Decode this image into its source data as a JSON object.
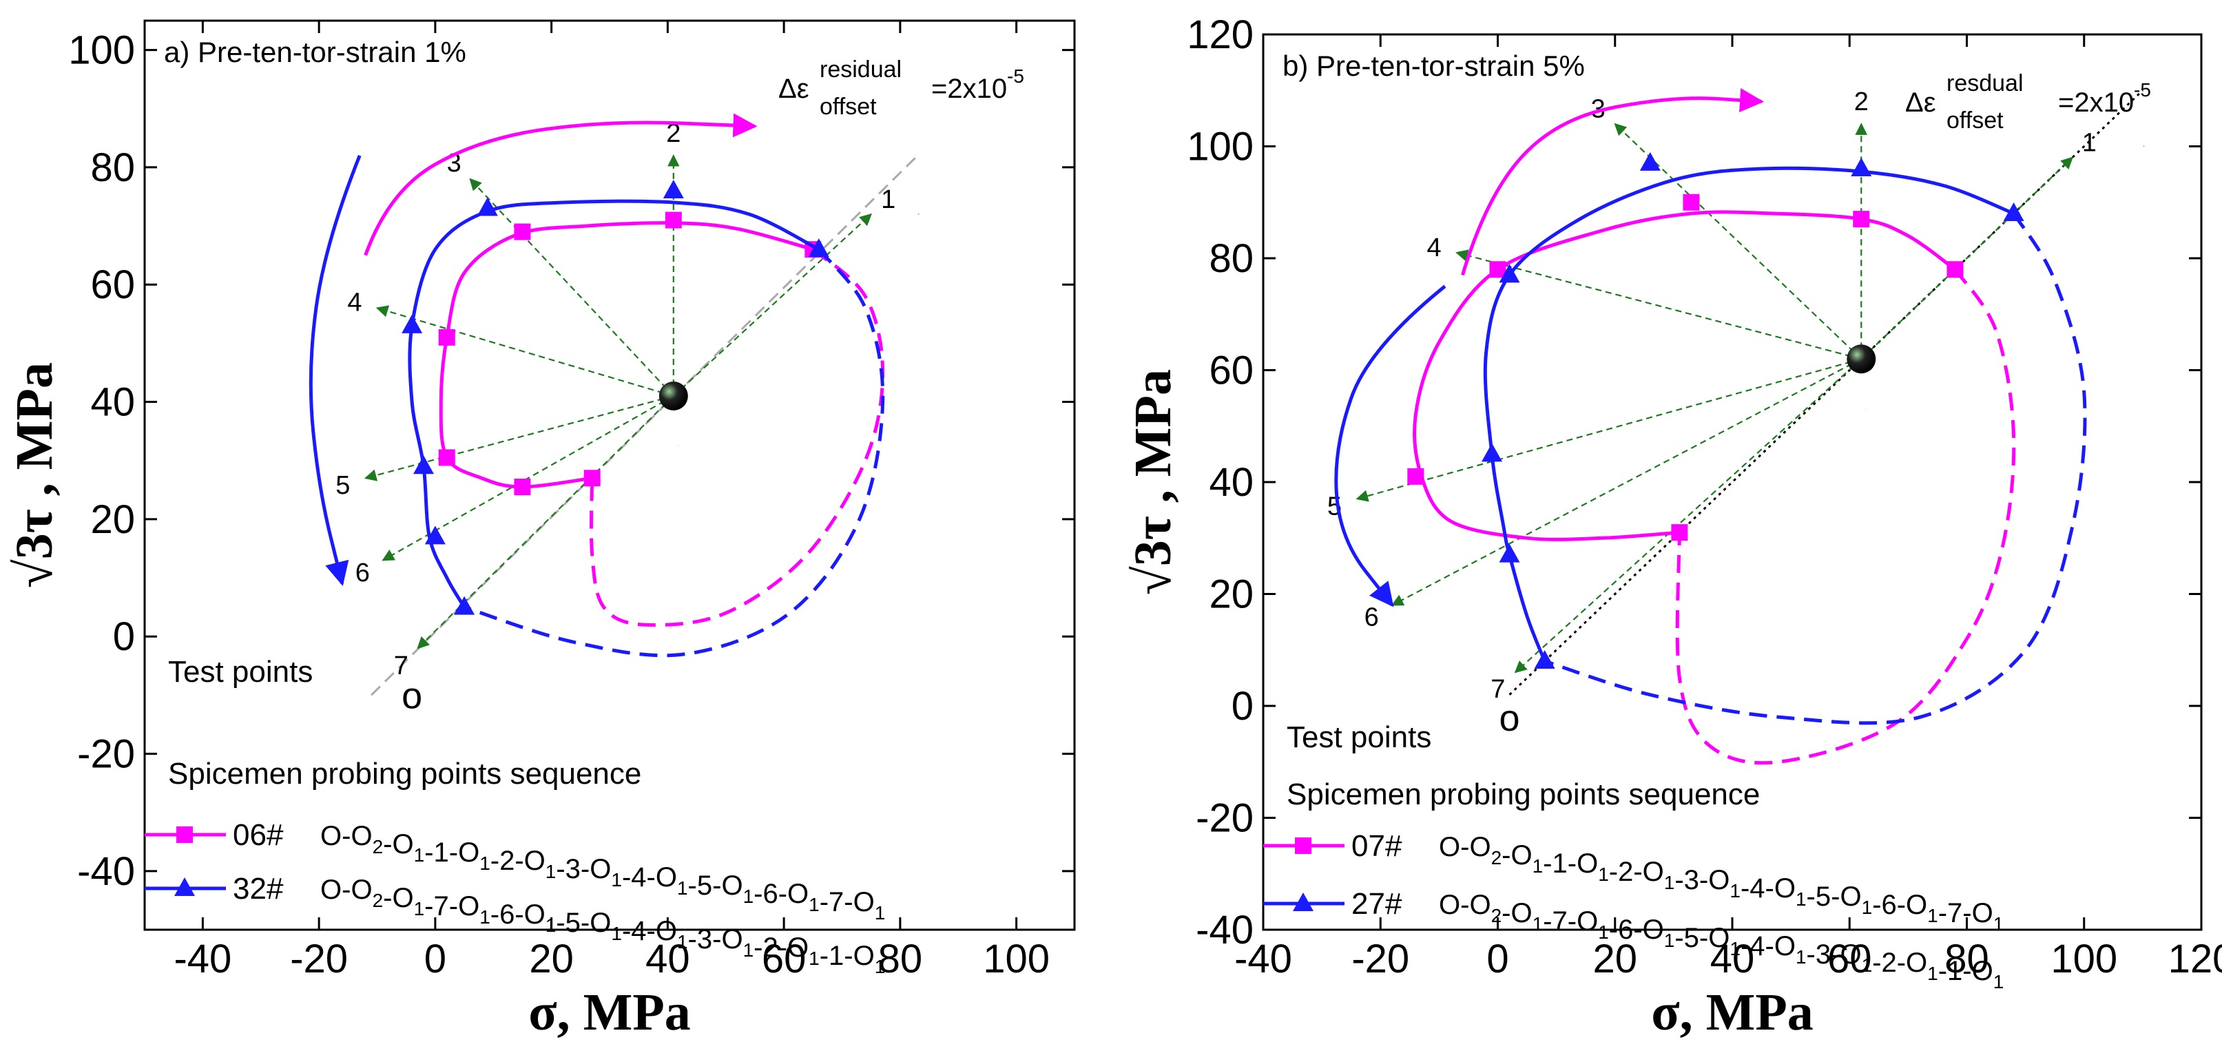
{
  "colors": {
    "magenta": "#ff00ff",
    "blue": "#1a1aff",
    "green": "#1e7a1e",
    "axis": "#000000",
    "gray": "#aaaaaa"
  },
  "chart_data": [
    {
      "type": "scatter",
      "panel_label": "a)",
      "title": "Pre-ten-tor-strain 1%",
      "offset_label": {
        "prefix": "Δε",
        "sup": "residual",
        "sub": "offset",
        "value": "=2x10",
        "exp": "-5"
      },
      "xlabel": "σ,  MPa",
      "ylabel_prefix": "√3τ",
      "ylabel_suffix": " , MPa",
      "xlim": [
        -50,
        110
      ],
      "ylim": [
        -50,
        105
      ],
      "xticks": [
        -40,
        -20,
        0,
        20,
        40,
        60,
        80,
        100
      ],
      "yticks": [
        -40,
        -20,
        0,
        20,
        40,
        60,
        80,
        100
      ],
      "center": {
        "x": 41,
        "y": 41,
        "label": "o",
        "sub": "1"
      },
      "origin": {
        "x": -4,
        "y": -8,
        "label": "o"
      },
      "o2": {
        "x": 83,
        "y": 72,
        "label": "o",
        "sub": "2"
      },
      "test_points_label": "Test points",
      "legend_header": "Spicemen    probing points sequence",
      "probe_arrows": [
        {
          "label": "1",
          "x": 75,
          "y": 72
        },
        {
          "label": "2",
          "x": 41,
          "y": 82
        },
        {
          "label": "3",
          "x": 6,
          "y": 78
        },
        {
          "label": "4",
          "x": -10,
          "y": 56
        },
        {
          "label": "5",
          "x": -12,
          "y": 27
        },
        {
          "label": "6",
          "x": -9,
          "y": 13
        },
        {
          "label": "7",
          "x": -3,
          "y": -2
        }
      ],
      "series": [
        {
          "name": "06#",
          "marker": "square",
          "color": "#ff00ff",
          "sequence": "O-O2-O1-1-O1-2-O1-3-O1-4-O1-5-O1-6-O1-7-O1",
          "points": [
            [
              65,
              66
            ],
            [
              41,
              71
            ],
            [
              15,
              69
            ],
            [
              2,
              51
            ],
            [
              2,
              30.5
            ],
            [
              15,
              25.5
            ],
            [
              27,
              27
            ]
          ],
          "curve": [
            [
              65,
              66
            ],
            [
              52,
              69.5
            ],
            [
              41,
              70.5
            ],
            [
              26,
              70
            ],
            [
              14,
              68.5
            ],
            [
              5,
              62
            ],
            [
              2,
              51
            ],
            [
              1,
              40
            ],
            [
              2,
              30.5
            ],
            [
              8,
              27
            ],
            [
              15,
              25.5
            ],
            [
              27,
              27
            ]
          ],
          "dashed": [
            [
              65,
              66
            ],
            [
              74,
              58
            ],
            [
              77,
              45
            ],
            [
              74,
              30
            ],
            [
              64,
              14
            ],
            [
              50,
              4
            ],
            [
              36,
              2
            ],
            [
              29,
              5
            ],
            [
              27,
              14
            ],
            [
              27,
              27
            ]
          ]
        },
        {
          "name": "32#",
          "marker": "triangle",
          "color": "#1a1aff",
          "sequence": "O-O2-O1-7-O1-6-O1-5-O1-4-O1-3-O1-2-O1-1-O1",
          "points": [
            [
              66,
              66
            ],
            [
              41,
              76
            ],
            [
              9,
              73
            ],
            [
              -4,
              53
            ],
            [
              -2,
              29
            ],
            [
              0,
              17
            ],
            [
              5,
              5
            ]
          ],
          "curve": [
            [
              66,
              66
            ],
            [
              54,
              72
            ],
            [
              41,
              74
            ],
            [
              22,
              74
            ],
            [
              9,
              72.5
            ],
            [
              0,
              66
            ],
            [
              -4,
              53
            ],
            [
              -4,
              40
            ],
            [
              -2,
              29
            ],
            [
              -1,
              17
            ],
            [
              2,
              10
            ],
            [
              5,
              5
            ]
          ],
          "dashed": [
            [
              66,
              66
            ],
            [
              74,
              56
            ],
            [
              77,
              40
            ],
            [
              73,
              20
            ],
            [
              61,
              4
            ],
            [
              43,
              -3
            ],
            [
              24,
              -1
            ],
            [
              5,
              5
            ]
          ]
        }
      ],
      "direction_arrows": [
        {
          "color": "#ff00ff",
          "path": [
            [
              -12,
              65
            ],
            [
              -8,
              76
            ],
            [
              8,
              85
            ],
            [
              30,
              88
            ],
            [
              55,
              87
            ]
          ]
        },
        {
          "color": "#1a1aff",
          "path": [
            [
              -13,
              82
            ],
            [
              -19,
              67
            ],
            [
              -22,
              45
            ],
            [
              -20,
              25
            ],
            [
              -16,
              9
            ]
          ]
        }
      ],
      "gray_line": [
        [
          -11,
          -10
        ],
        [
          83,
          82
        ]
      ]
    },
    {
      "type": "scatter",
      "panel_label": "b)",
      "title": "Pre-ten-tor-strain 5%",
      "offset_label": {
        "prefix": "Δε",
        "sup": "resdual",
        "sub": "offset",
        "value": "=2x10",
        "exp": "-5"
      },
      "xlabel": "σ,  MPa",
      "ylabel_prefix": "√3τ",
      "ylabel_suffix": " , MPa",
      "xlim": [
        -40,
        120
      ],
      "ylim": [
        -40,
        120
      ],
      "xticks": [
        -40,
        -20,
        0,
        20,
        40,
        60,
        80,
        100,
        120
      ],
      "yticks": [
        -40,
        -20,
        0,
        20,
        40,
        60,
        80,
        100,
        120
      ],
      "center": {
        "x": 62,
        "y": 62,
        "label": "o",
        "sub": "1"
      },
      "origin": {
        "x": 2,
        "y": 0,
        "label": "o"
      },
      "o2": {
        "x": 110,
        "y": 100,
        "label": "o",
        "sub": "2"
      },
      "test_points_label": "Test points",
      "legend_header": "Spicemen  probing points sequence",
      "probe_arrows": [
        {
          "label": "1",
          "x": 98,
          "y": 98
        },
        {
          "label": "2",
          "x": 62,
          "y": 104
        },
        {
          "label": "3",
          "x": 20,
          "y": 104
        },
        {
          "label": "4",
          "x": -7,
          "y": 81
        },
        {
          "label": "5",
          "x": -24,
          "y": 37
        },
        {
          "label": "6",
          "x": -18,
          "y": 18
        },
        {
          "label": "7",
          "x": 3,
          "y": 6
        }
      ],
      "series": [
        {
          "name": "07#",
          "marker": "square",
          "color": "#ff00ff",
          "sequence": "O-O2-O1-1-O1-2-O1-3-O1-4-O1-5-O1-6-O1-7-O1",
          "points": [
            [
              78,
              78
            ],
            [
              62,
              87
            ],
            [
              33,
              90
            ],
            [
              0,
              78
            ],
            [
              -14,
              41
            ],
            [
              31,
              31
            ]
          ],
          "curve": [
            [
              78,
              78
            ],
            [
              70,
              84
            ],
            [
              62,
              87
            ],
            [
              47,
              88
            ],
            [
              33,
              88
            ],
            [
              18,
              85
            ],
            [
              0,
              78
            ],
            [
              -10,
              65
            ],
            [
              -14,
              52
            ],
            [
              -13,
              41
            ],
            [
              -8,
              33
            ],
            [
              5,
              30
            ],
            [
              18,
              30
            ],
            [
              31,
              31
            ]
          ],
          "dashed": [
            [
              78,
              78
            ],
            [
              85,
              67
            ],
            [
              88,
              48
            ],
            [
              86,
              28
            ],
            [
              80,
              12
            ],
            [
              68,
              -3
            ],
            [
              48,
              -10
            ],
            [
              36,
              -7
            ],
            [
              31,
              5
            ],
            [
              31,
              31
            ]
          ]
        },
        {
          "name": "27#",
          "marker": "triangle",
          "color": "#1a1aff",
          "sequence": "O-O2-O1-7-O1-6-O1-5-O1-4-O1-3-O1-2-O1-1-O1",
          "points": [
            [
              88,
              88
            ],
            [
              62,
              96
            ],
            [
              26,
              97
            ],
            [
              2,
              77
            ],
            [
              -1,
              45
            ],
            [
              2,
              27
            ],
            [
              8,
              8
            ]
          ],
          "curve": [
            [
              88,
              88
            ],
            [
              76,
              93
            ],
            [
              62,
              95.5
            ],
            [
              45,
              96
            ],
            [
              30,
              94
            ],
            [
              14,
              87
            ],
            [
              2,
              77
            ],
            [
              -2,
              63
            ],
            [
              -1,
              45
            ],
            [
              1,
              32
            ],
            [
              2,
              27
            ],
            [
              5,
              16
            ],
            [
              8,
              8
            ]
          ],
          "dashed": [
            [
              88,
              88
            ],
            [
              95,
              76
            ],
            [
              100,
              56
            ],
            [
              98,
              32
            ],
            [
              90,
              10
            ],
            [
              72,
              -2
            ],
            [
              48,
              -2
            ],
            [
              26,
              2
            ],
            [
              8,
              8
            ]
          ]
        }
      ],
      "direction_arrows": [
        {
          "color": "#ff00ff",
          "path": [
            [
              -6,
              77
            ],
            [
              -2,
              91
            ],
            [
              10,
              105
            ],
            [
              30,
              109
            ],
            [
              45,
              108
            ]
          ]
        },
        {
          "color": "#1a1aff",
          "path": [
            [
              -9,
              75
            ],
            [
              -22,
              64
            ],
            [
              -28,
              46
            ],
            [
              -27,
              30
            ],
            [
              -18,
              18
            ]
          ]
        }
      ],
      "gray_line": [
        [
          2,
          2
        ],
        [
          110,
          110
        ]
      ]
    }
  ]
}
